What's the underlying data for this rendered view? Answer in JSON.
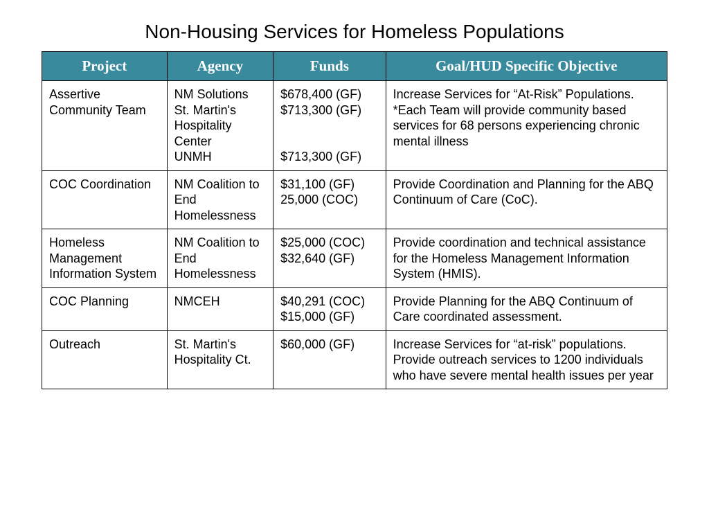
{
  "title": "Non-Housing Services for Homeless Populations",
  "table": {
    "header_bg": "#3a8a9e",
    "header_fg": "#ffffff",
    "border_color": "#000000",
    "columns": [
      {
        "label": "Project",
        "width": "20%"
      },
      {
        "label": "Agency",
        "width": "17%"
      },
      {
        "label": "Funds",
        "width": "18%"
      },
      {
        "label": "Goal/HUD Specific Objective",
        "width": "45%"
      }
    ],
    "rows": [
      {
        "project": "Assertive Community Team",
        "agency": "NM Solutions\nSt. Martin's Hospitality Center\nUNMH",
        "funds": "$678,400 (GF)\n$713,300 (GF)\n\n\n$713,300 (GF)",
        "goal": "Increase Services for “At-Risk” Populations.\n*Each Team will provide community based services for 68 persons experiencing chronic mental illness"
      },
      {
        "project": "COC Coordination",
        "agency": "NM Coalition to End Homelessness",
        "funds": "$31,100 (GF)\n25,000 (COC)",
        "goal": "Provide Coordination and Planning for the ABQ Continuum of Care (CoC)."
      },
      {
        "project": "Homeless Management Information System",
        "agency": "NM Coalition to End Homelessness",
        "funds": "$25,000 (COC)\n$32,640 (GF)",
        "goal": "Provide coordination and technical assistance for the Homeless Management Information System (HMIS)."
      },
      {
        "project": "COC Planning",
        "agency": "NMCEH",
        "funds": "$40,291 (COC)\n$15,000 (GF)",
        "goal": "Provide Planning for the ABQ Continuum of Care coordinated assessment."
      },
      {
        "project": "Outreach",
        "agency": "St. Martin's Hospitality Ct.",
        "funds": "$60,000 (GF)",
        "goal": "Increase Services for “at-risk” populations.\nProvide outreach services to 1200 individuals who have severe mental health issues per year"
      }
    ]
  }
}
